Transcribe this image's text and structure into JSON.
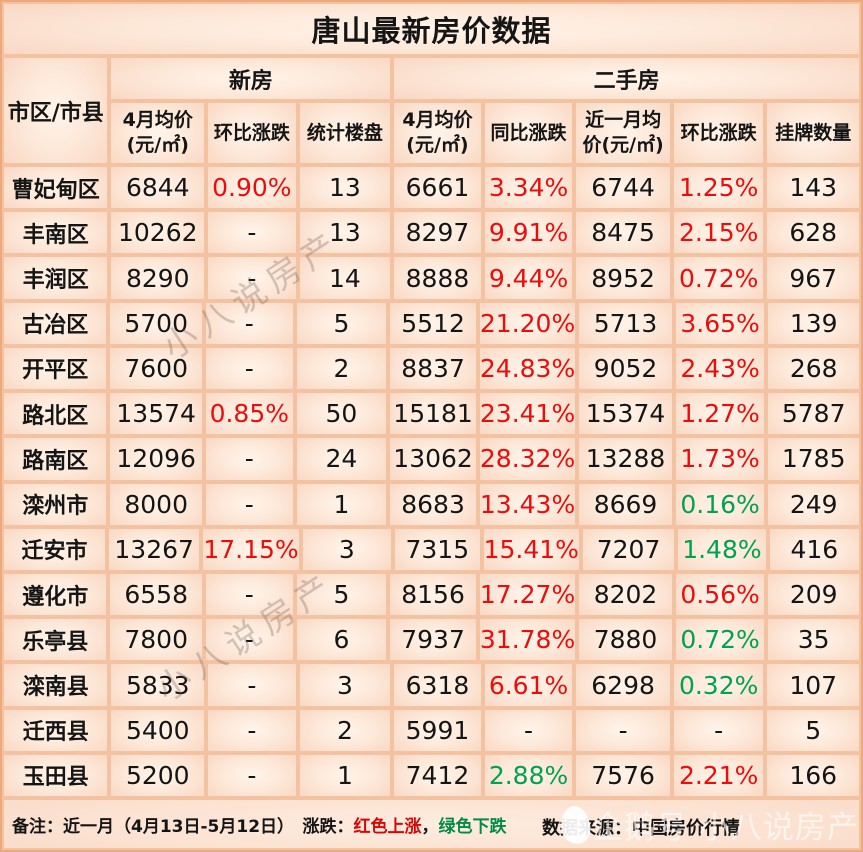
{
  "title": "唐山最新房价数据",
  "colors": {
    "up_red": "#ec0c0c",
    "down_green": "#00a24f",
    "grid": "#f3c2a0",
    "cell_fill": "#fce5d5"
  },
  "header": {
    "region_col": "市区/市县",
    "group_new": "新房",
    "group_resale": "二手房",
    "sub": [
      "4月均价\n(元/㎡)",
      "环比涨跌",
      "统计楼盘",
      "4月均价\n(元/㎡)",
      "同比涨跌",
      "近一月均价(元/㎡)",
      "环比涨跌",
      "挂牌数量"
    ]
  },
  "chart_data": {
    "type": "table",
    "title": "唐山最新房价数据",
    "column_groups": [
      {
        "label": "新房",
        "span": 3
      },
      {
        "label": "二手房",
        "span": 5
      }
    ],
    "columns": [
      "市区/市县",
      "新房 4月均价(元/㎡)",
      "新房 环比涨跌",
      "统计楼盘",
      "二手房 4月均价(元/㎡)",
      "同比涨跌",
      "近一月均价(元/㎡)",
      "环比涨跌",
      "挂牌数量"
    ],
    "legend": "红色上涨，绿色下跌",
    "rows": [
      {
        "region": "曹妃甸区",
        "cells": [
          {
            "v": "6844"
          },
          {
            "v": "0.90%",
            "color": "red"
          },
          {
            "v": "13"
          },
          {
            "v": "6661"
          },
          {
            "v": "3.34%",
            "color": "red"
          },
          {
            "v": "6744"
          },
          {
            "v": "1.25%",
            "color": "red"
          },
          {
            "v": "143"
          }
        ]
      },
      {
        "region": "丰南区",
        "cells": [
          {
            "v": "10262"
          },
          {
            "v": "-"
          },
          {
            "v": "13"
          },
          {
            "v": "8297"
          },
          {
            "v": "9.91%",
            "color": "red"
          },
          {
            "v": "8475"
          },
          {
            "v": "2.15%",
            "color": "red"
          },
          {
            "v": "628"
          }
        ]
      },
      {
        "region": "丰润区",
        "cells": [
          {
            "v": "8290"
          },
          {
            "v": "-"
          },
          {
            "v": "14"
          },
          {
            "v": "8888"
          },
          {
            "v": "9.44%",
            "color": "red"
          },
          {
            "v": "8952"
          },
          {
            "v": "0.72%",
            "color": "red"
          },
          {
            "v": "967"
          }
        ]
      },
      {
        "region": "古冶区",
        "cells": [
          {
            "v": "5700"
          },
          {
            "v": "-"
          },
          {
            "v": "5"
          },
          {
            "v": "5512"
          },
          {
            "v": "21.20%",
            "color": "red"
          },
          {
            "v": "5713"
          },
          {
            "v": "3.65%",
            "color": "red"
          },
          {
            "v": "139"
          }
        ]
      },
      {
        "region": "开平区",
        "cells": [
          {
            "v": "7600"
          },
          {
            "v": "-"
          },
          {
            "v": "2"
          },
          {
            "v": "8837"
          },
          {
            "v": "24.83%",
            "color": "red"
          },
          {
            "v": "9052"
          },
          {
            "v": "2.43%",
            "color": "red"
          },
          {
            "v": "268"
          }
        ]
      },
      {
        "region": "路北区",
        "cells": [
          {
            "v": "13574"
          },
          {
            "v": "0.85%",
            "color": "red"
          },
          {
            "v": "50"
          },
          {
            "v": "15181"
          },
          {
            "v": "23.41%",
            "color": "red"
          },
          {
            "v": "15374"
          },
          {
            "v": "1.27%",
            "color": "red"
          },
          {
            "v": "5787"
          }
        ]
      },
      {
        "region": "路南区",
        "cells": [
          {
            "v": "12096"
          },
          {
            "v": "-"
          },
          {
            "v": "24"
          },
          {
            "v": "13062"
          },
          {
            "v": "28.32%",
            "color": "red"
          },
          {
            "v": "13288"
          },
          {
            "v": "1.73%",
            "color": "red"
          },
          {
            "v": "1785"
          }
        ]
      },
      {
        "region": "滦州市",
        "cells": [
          {
            "v": "8000"
          },
          {
            "v": "-"
          },
          {
            "v": "1"
          },
          {
            "v": "8683"
          },
          {
            "v": "13.43%",
            "color": "red"
          },
          {
            "v": "8669"
          },
          {
            "v": "0.16%",
            "color": "green"
          },
          {
            "v": "249"
          }
        ]
      },
      {
        "region": "迁安市",
        "cells": [
          {
            "v": "13267"
          },
          {
            "v": "17.15%",
            "color": "red"
          },
          {
            "v": "3"
          },
          {
            "v": "7315"
          },
          {
            "v": "15.41%",
            "color": "red"
          },
          {
            "v": "7207"
          },
          {
            "v": "1.48%",
            "color": "green"
          },
          {
            "v": "416"
          }
        ]
      },
      {
        "region": "遵化市",
        "cells": [
          {
            "v": "6558"
          },
          {
            "v": "-"
          },
          {
            "v": "5"
          },
          {
            "v": "8156"
          },
          {
            "v": "17.27%",
            "color": "red"
          },
          {
            "v": "8202"
          },
          {
            "v": "0.56%",
            "color": "red"
          },
          {
            "v": "209"
          }
        ]
      },
      {
        "region": "乐亭县",
        "cells": [
          {
            "v": "7800"
          },
          {
            "v": "-"
          },
          {
            "v": "6"
          },
          {
            "v": "7937"
          },
          {
            "v": "31.78%",
            "color": "red"
          },
          {
            "v": "7880"
          },
          {
            "v": "0.72%",
            "color": "green"
          },
          {
            "v": "35"
          }
        ]
      },
      {
        "region": "滦南县",
        "cells": [
          {
            "v": "5833"
          },
          {
            "v": "-"
          },
          {
            "v": "3"
          },
          {
            "v": "6318"
          },
          {
            "v": "6.61%",
            "color": "red"
          },
          {
            "v": "6298"
          },
          {
            "v": "0.32%",
            "color": "green"
          },
          {
            "v": "107"
          }
        ]
      },
      {
        "region": "迁西县",
        "cells": [
          {
            "v": "5400"
          },
          {
            "v": "-"
          },
          {
            "v": "2"
          },
          {
            "v": "5991"
          },
          {
            "v": "-"
          },
          {
            "v": "-"
          },
          {
            "v": "-"
          },
          {
            "v": "5"
          }
        ]
      },
      {
        "region": "玉田县",
        "cells": [
          {
            "v": "5200"
          },
          {
            "v": "-"
          },
          {
            "v": "1"
          },
          {
            "v": "7412"
          },
          {
            "v": "2.88%",
            "color": "green"
          },
          {
            "v": "7576"
          },
          {
            "v": "2.21%",
            "color": "red"
          },
          {
            "v": "166"
          }
        ]
      }
    ]
  },
  "footer": {
    "note_prefix": "备注：近一月（4月13日-5月12日）　涨跌：",
    "note_red": "红色上涨",
    "note_comma": "，",
    "note_green": "绿色下跌",
    "source": "数据来源：中国房价行情"
  },
  "watermarks": {
    "diagonal": "小八说房产",
    "bottom": "企鹅号 小八说房产"
  }
}
